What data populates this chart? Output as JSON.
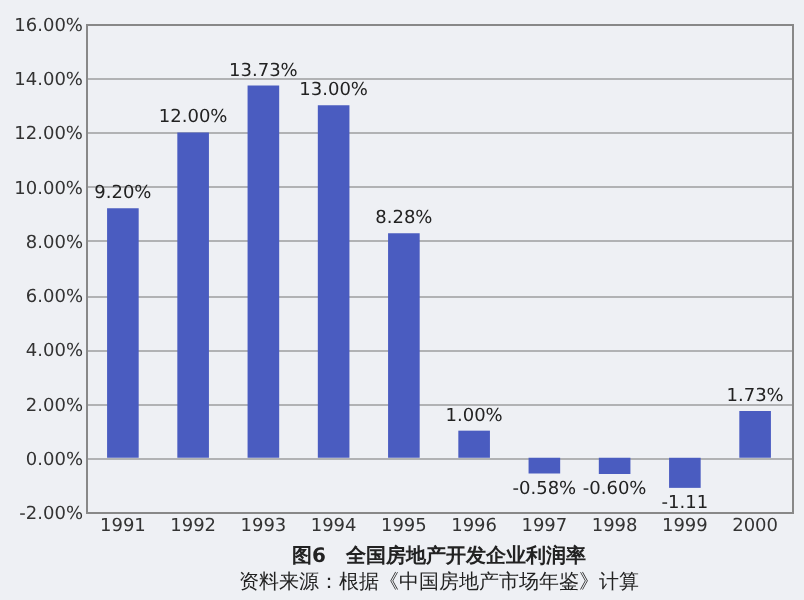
{
  "chart_data": {
    "type": "bar",
    "title": "图6　全国房地产开发企业利润率",
    "annotations": [
      "资料来源：根据《中国房地产市场年鉴》计算"
    ],
    "categories": [
      "1991",
      "1992",
      "1993",
      "1994",
      "1995",
      "1996",
      "1997",
      "1998",
      "1999",
      "2000"
    ],
    "values": [
      9.2,
      12.0,
      13.73,
      13.0,
      8.28,
      1.0,
      -0.58,
      -0.6,
      -1.11,
      1.73
    ],
    "value_labels": [
      "9.20%",
      "12.00%",
      "13.73%",
      "13.00%",
      "8.28%",
      "1.00%",
      "-0.58%",
      "-0.60%",
      "-1.11",
      "1.73%"
    ],
    "color": "#4a5cc0",
    "ylim": [
      -2,
      16
    ],
    "yticks": [
      {
        "value": -2,
        "label": "-2.00%"
      },
      {
        "value": 0,
        "label": "0.00%"
      },
      {
        "value": 2,
        "label": "2.00%"
      },
      {
        "value": 4,
        "label": "4.00%"
      },
      {
        "value": 6,
        "label": "6.00%"
      },
      {
        "value": 8,
        "label": "8.00%"
      },
      {
        "value": 10,
        "label": "10.00%"
      },
      {
        "value": 12,
        "label": "12.00%"
      },
      {
        "value": 14,
        "label": "14.00%"
      },
      {
        "value": 16,
        "label": "16.00%"
      }
    ],
    "grid": "y"
  }
}
